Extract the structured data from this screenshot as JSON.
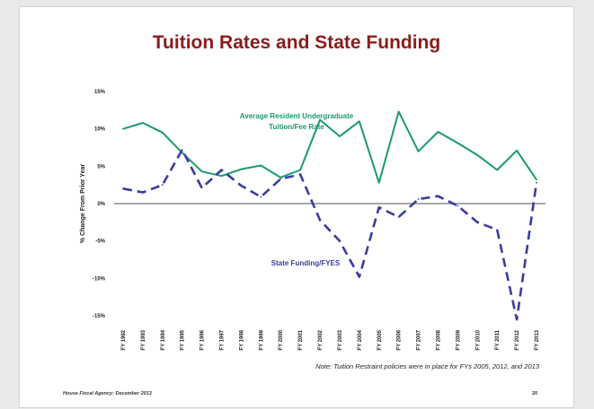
{
  "slide": {
    "title": "Tuition Rates and State Funding",
    "note": "Note: Tuition Restraint policies were in place for FYs 2005, 2012, and 2013",
    "footer_left": "House Fiscal Agency: December 2013",
    "page_number": "20"
  },
  "chart_data": {
    "type": "line",
    "ylabel": "% Change From Prior Year",
    "xlabel": "",
    "ylim": [
      -15,
      15
    ],
    "yticks": [
      "15%",
      "10%",
      "5%",
      "0%",
      "-5%",
      "-10%",
      "-15%"
    ],
    "ytick_values": [
      15,
      10,
      5,
      0,
      -5,
      -10,
      -15
    ],
    "categories": [
      "FY 1992",
      "FY 1993",
      "FY 1994",
      "FY 1995",
      "FY 1996",
      "FY 1997",
      "FY 1998",
      "FY 1999",
      "FY 2000",
      "FY 2001",
      "FY 2002",
      "FY 2003",
      "FY 2004",
      "FY 2005",
      "FY 2006",
      "FY 2007",
      "FY 2008",
      "FY 2009",
      "FY 2010",
      "FY 2011",
      "FY 2012",
      "FY 2013"
    ],
    "series": [
      {
        "name": "Average Resident Undergraduate Tuition/Fee Rate",
        "name_lines": [
          "Average Resident Undergraduate",
          "Tuition/Fee Rate"
        ],
        "color": "#1a9a6e",
        "style": "solid",
        "values": [
          10.0,
          10.8,
          9.5,
          6.8,
          4.3,
          3.7,
          4.6,
          5.1,
          3.5,
          4.5,
          11.2,
          9.0,
          11.0,
          2.8,
          12.3,
          7.0,
          9.6,
          8.1,
          6.5,
          4.5,
          7.1,
          3.2
        ]
      },
      {
        "name": "State Funding/FYES",
        "name_lines": [
          "State Funding/FYES"
        ],
        "color": "#3c3c9e",
        "style": "dashed",
        "values": [
          2.0,
          1.5,
          2.5,
          7.2,
          2.1,
          4.5,
          2.4,
          0.9,
          3.3,
          3.9,
          -2.2,
          -5.0,
          -9.8,
          -0.5,
          -1.8,
          0.6,
          1.0,
          -0.3,
          -2.5,
          -3.5,
          -15.5,
          2.8
        ]
      }
    ],
    "grid": false,
    "zero_line": true
  }
}
